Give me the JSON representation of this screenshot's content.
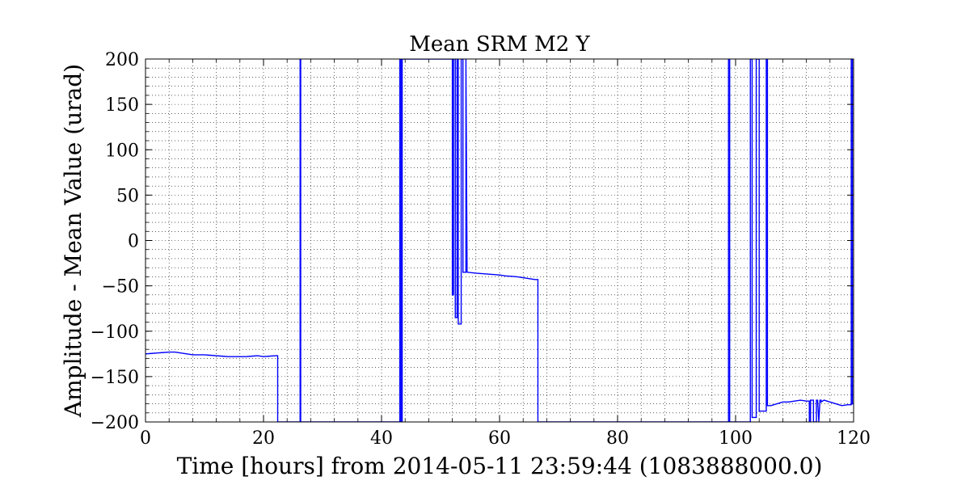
{
  "chart_data": {
    "type": "line",
    "title": "Mean SRM M2 Y",
    "xlabel": "Time [hours] from 2014-05-11 23:59:44 (1083888000.0)",
    "ylabel": "Amplitude - Mean Value (urad)",
    "xlim": [
      0,
      120
    ],
    "ylim": [
      -200,
      200
    ],
    "x_ticks": [
      0,
      20,
      40,
      60,
      80,
      100,
      120
    ],
    "x_tick_labels": [
      "0",
      "20",
      "40",
      "60",
      "80",
      "100",
      "120"
    ],
    "y_ticks": [
      -200,
      -150,
      -100,
      -50,
      0,
      50,
      100,
      150,
      200
    ],
    "y_tick_labels": [
      "−200",
      "−150",
      "−100",
      "−50",
      "0",
      "50",
      "100",
      "150",
      "200"
    ],
    "grid": true,
    "line_color": "#0000ff",
    "series": [
      {
        "x": [
          0,
          1,
          2,
          3,
          4,
          5,
          6,
          7,
          8,
          9,
          10,
          11,
          12,
          13,
          14,
          15,
          16,
          17,
          18,
          19,
          20,
          21,
          22,
          22.4,
          22.4,
          26.2,
          26.2,
          26.3,
          26.3,
          43.1,
          43.1,
          43.3,
          43.3,
          43.5,
          43.5,
          52.0,
          52.0,
          52.2,
          52.2,
          52.5,
          52.5,
          52.8,
          52.8,
          53.0,
          53.0,
          53.5,
          53.5,
          53.8,
          53.8,
          54.3,
          54.3,
          54.5,
          56,
          58,
          60,
          61,
          62,
          63,
          64,
          65,
          66,
          66.5,
          66.5,
          98.8,
          98.8,
          99.0,
          99.0,
          102.5,
          102.5,
          102.8,
          102.8,
          103.5,
          103.5,
          104.0,
          104.0,
          105.2,
          105.2,
          105.4,
          105.4,
          106,
          107,
          108,
          109,
          110,
          111,
          112,
          112.5,
          112.5,
          112.7,
          112.7,
          113,
          113.2,
          113.2,
          113.5,
          113.7,
          113.7,
          113.9,
          114.1,
          114.1,
          114.3,
          114.5,
          114.5,
          115,
          116,
          117,
          118,
          119,
          119.6,
          119.6,
          119.8,
          119.8,
          120
        ],
        "y": [
          -125,
          -124.5,
          -124,
          -123.5,
          -123,
          -123,
          -124,
          -125,
          -126,
          -126,
          -126,
          -126.5,
          -127,
          -127.5,
          -128,
          -128,
          -128,
          -128,
          -127.5,
          -127,
          -128,
          -127.5,
          -127,
          -127,
          -200,
          -200,
          200,
          200,
          -200,
          -200,
          200,
          200,
          -200,
          -200,
          200,
          200,
          -60,
          -60,
          200,
          200,
          -85,
          -85,
          200,
          200,
          -92,
          -92,
          200,
          200,
          -35,
          -35,
          200,
          -35,
          -36,
          -37,
          -38,
          -39,
          -39.5,
          -40,
          -41,
          -42,
          -43,
          -43,
          -200,
          -200,
          200,
          200,
          -200,
          -200,
          200,
          200,
          -195,
          -195,
          200,
          200,
          -188,
          -188,
          200,
          200,
          -182,
          -182,
          -180,
          -178,
          -178,
          -177,
          -176,
          -177,
          -177,
          -200,
          -200,
          -176,
          -176,
          -176,
          -200,
          -200,
          -200,
          -176,
          -176,
          -200,
          -200,
          -176,
          -176,
          -178,
          -176,
          -178,
          -180,
          -182,
          -181,
          -181,
          200,
          200,
          -180,
          -180
        ]
      }
    ]
  }
}
